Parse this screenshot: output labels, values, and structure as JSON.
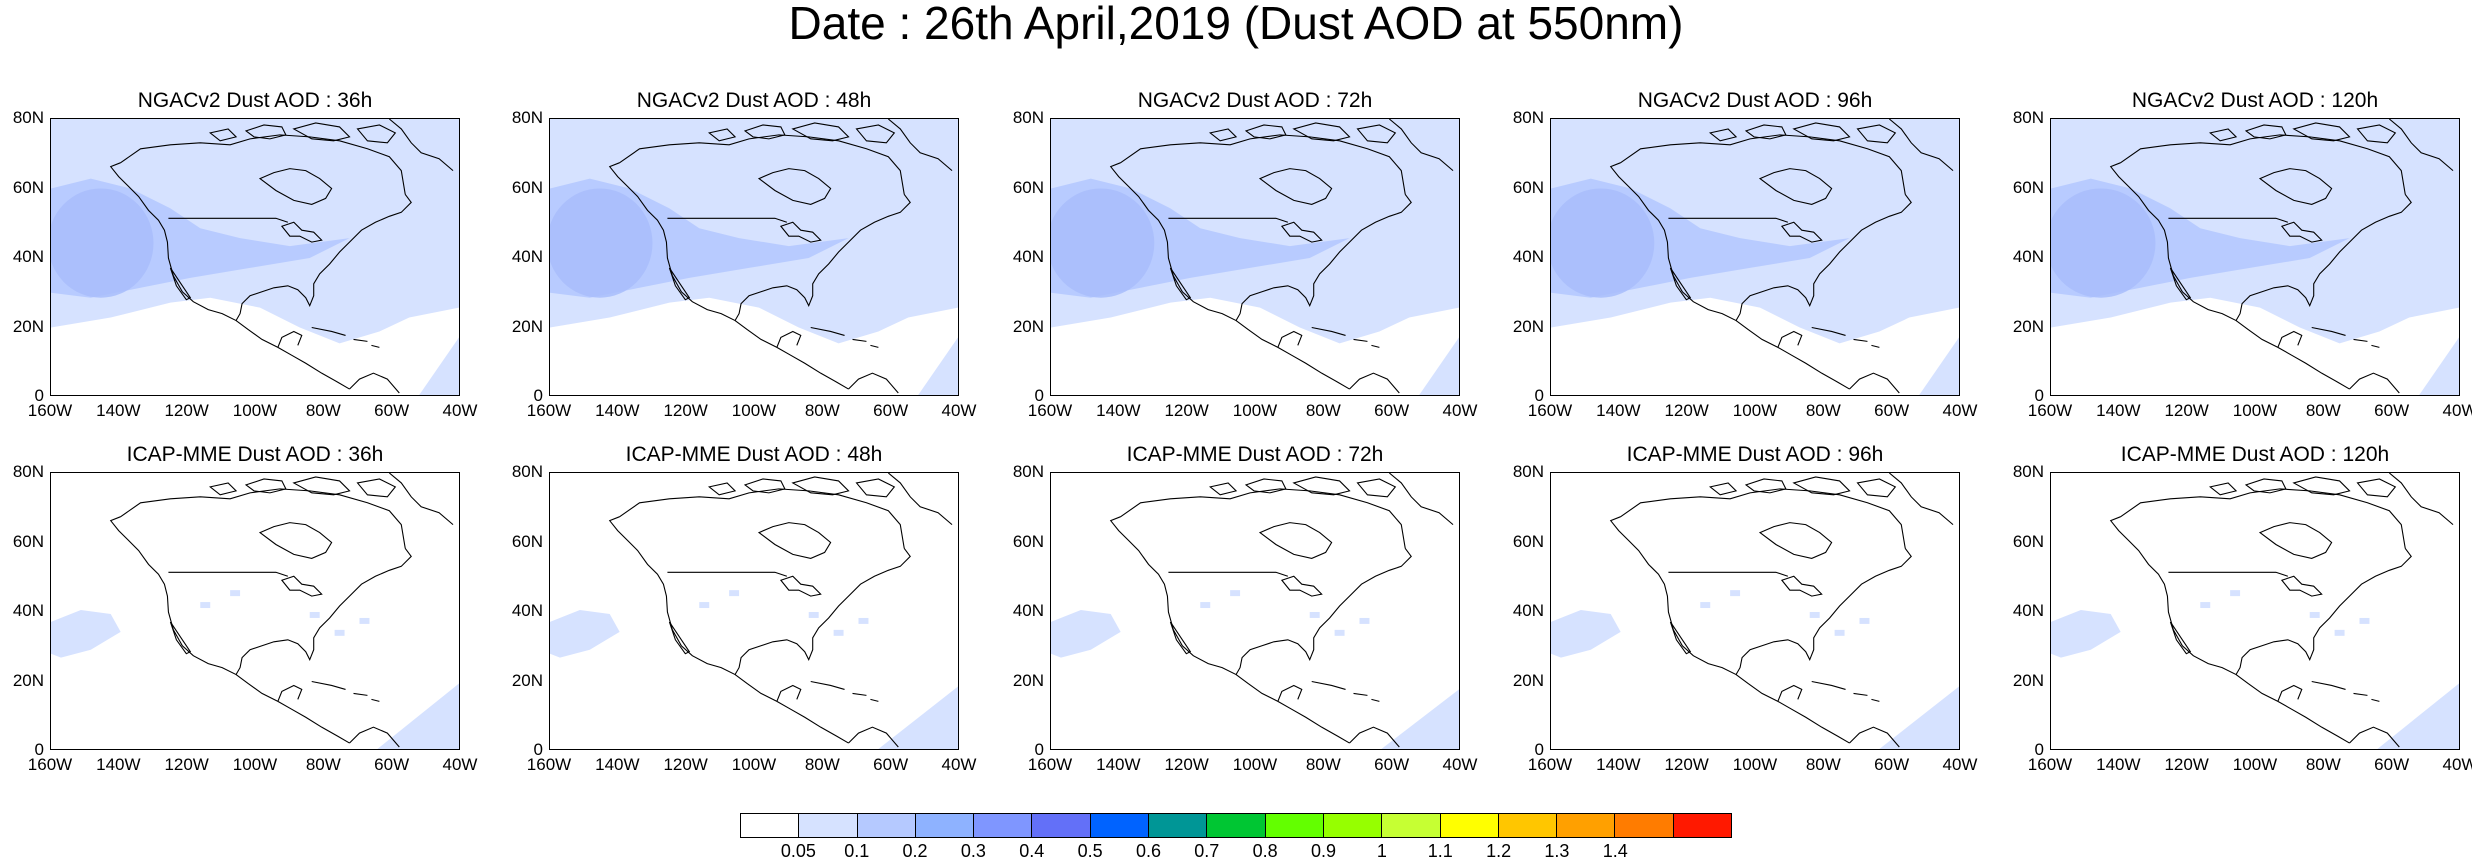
{
  "title": "Date : 26th April,2019 (Dust AOD at 550nm)",
  "panels": [
    {
      "title": "NGACv2 Dust AOD : 36h",
      "model": "NGACv2",
      "lead": "36h",
      "level": 0.2
    },
    {
      "title": "NGACv2 Dust AOD : 48h",
      "model": "NGACv2",
      "lead": "48h",
      "level": 0.2
    },
    {
      "title": "NGACv2 Dust AOD : 72h",
      "model": "NGACv2",
      "lead": "72h",
      "level": 0.22
    },
    {
      "title": "NGACv2 Dust AOD : 96h",
      "model": "NGACv2",
      "lead": "96h",
      "level": 0.22
    },
    {
      "title": "NGACv2 Dust AOD : 120h",
      "model": "NGACv2",
      "lead": "120h",
      "level": 0.25
    },
    {
      "title": "ICAP-MME Dust AOD : 36h",
      "model": "ICAP-MME",
      "lead": "36h",
      "level": 0.06
    },
    {
      "title": "ICAP-MME Dust AOD : 48h",
      "model": "ICAP-MME",
      "lead": "48h",
      "level": 0.05
    },
    {
      "title": "ICAP-MME Dust AOD : 72h",
      "model": "ICAP-MME",
      "lead": "72h",
      "level": 0.04
    },
    {
      "title": "ICAP-MME Dust AOD : 96h",
      "model": "ICAP-MME",
      "lead": "96h",
      "level": 0.05
    },
    {
      "title": "ICAP-MME Dust AOD : 120h",
      "model": "ICAP-MME",
      "lead": "120h",
      "level": 0.06
    }
  ],
  "lat_ticks": [
    "80N",
    "60N",
    "40N",
    "20N",
    "0"
  ],
  "lon_ticks": [
    "160W",
    "140W",
    "120W",
    "100W",
    "80W",
    "60W",
    "40W"
  ],
  "map_extent": {
    "lon": [
      -160,
      -40
    ],
    "lat": [
      0,
      80
    ]
  },
  "colorbar": {
    "labels": [
      "0.05",
      "0.1",
      "0.2",
      "0.3",
      "0.4",
      "0.5",
      "0.6",
      "0.7",
      "0.8",
      "0.9",
      "1",
      "1.1",
      "1.2",
      "1.3",
      "1.4"
    ],
    "colors": [
      "#ffffff",
      "#d6e2ff",
      "#b5c9ff",
      "#8eb2ff",
      "#7f96ff",
      "#6370f8",
      "#0063ff",
      "#009696",
      "#00c633",
      "#63ff00",
      "#96ff00",
      "#c6ff33",
      "#ffff00",
      "#ffc600",
      "#ffa000",
      "#ff7c00",
      "#ff1900"
    ]
  }
}
